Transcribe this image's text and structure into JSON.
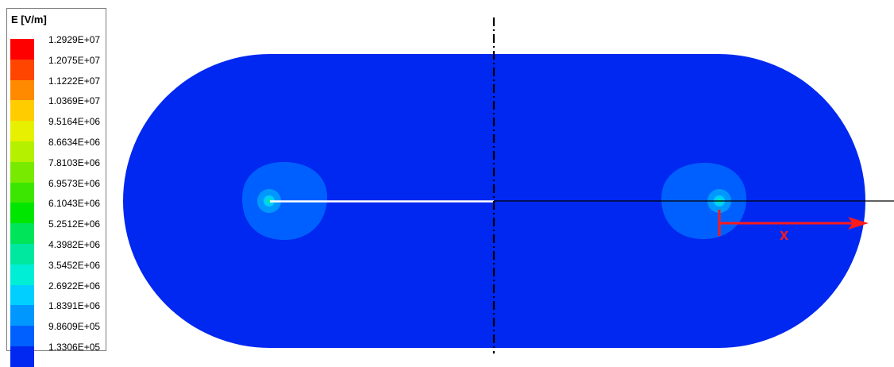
{
  "legend": {
    "title": "E [V/m]",
    "levels": [
      {
        "value": "1.2929E+07",
        "color": "#ff0000"
      },
      {
        "value": "1.2075E+07",
        "color": "#ff4500"
      },
      {
        "value": "1.1222E+07",
        "color": "#ff8a00"
      },
      {
        "value": "1.0369E+07",
        "color": "#ffcc00"
      },
      {
        "value": "9.5164E+06",
        "color": "#e6f000"
      },
      {
        "value": "8.6634E+06",
        "color": "#b4f000"
      },
      {
        "value": "7.8103E+06",
        "color": "#78ea00"
      },
      {
        "value": "6.9573E+06",
        "color": "#3ce600"
      },
      {
        "value": "6.1043E+06",
        "color": "#00e600"
      },
      {
        "value": "5.2512E+06",
        "color": "#00e45a"
      },
      {
        "value": "4.3982E+06",
        "color": "#00e8a0"
      },
      {
        "value": "3.5452E+06",
        "color": "#00eed6"
      },
      {
        "value": "2.6922E+06",
        "color": "#00cfff"
      },
      {
        "value": "1.8391E+06",
        "color": "#0098ff"
      },
      {
        "value": "9.8609E+05",
        "color": "#0060ff"
      },
      {
        "value": "1.3306E+05",
        "color": "#0028f0"
      }
    ]
  },
  "diagram": {
    "domain_color": "#0028f0",
    "hotspot_colors": [
      "#0060ff",
      "#0098ff",
      "#00cfff",
      "#00e8a0"
    ],
    "axis_color": "#ff1a1a",
    "axis_label": "x"
  }
}
